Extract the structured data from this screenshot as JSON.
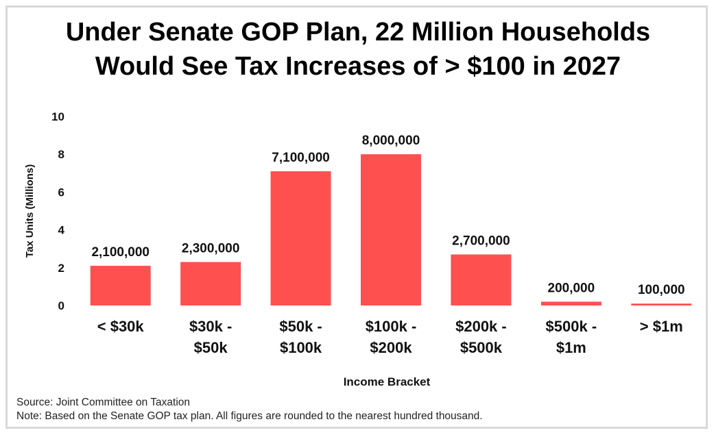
{
  "chart_data": {
    "type": "bar",
    "title": [
      "Under Senate GOP Plan, 22 Million Households",
      "Would See Tax Increases of > $100 in 2027"
    ],
    "xlabel": "Income Bracket",
    "ylabel": "Tax Units (Millions)",
    "ylim": [
      0,
      10
    ],
    "yticks": [
      "0",
      "2",
      "4",
      "6",
      "8",
      "10"
    ],
    "grid": false,
    "categories": [
      [
        "< $30k"
      ],
      [
        "$30k -",
        "$50k"
      ],
      [
        "$50k -",
        "$100k"
      ],
      [
        "$100k -",
        "$200k"
      ],
      [
        "$200k -",
        "$500k"
      ],
      [
        "$500k -",
        "$1m"
      ],
      [
        "> $1m"
      ]
    ],
    "values": [
      2.1,
      2.3,
      7.1,
      8.0,
      2.7,
      0.2,
      0.1
    ],
    "data_labels": [
      "2,100,000",
      "2,300,000",
      "7,100,000",
      "8,000,000",
      "2,700,000",
      "200,000",
      "100,000"
    ],
    "bar_color": "#ff5050"
  },
  "notes": {
    "source": "Source: Joint Committee on Taxation",
    "note": "Note: Based on the Senate GOP tax plan. All figures are rounded to the nearest hundred thousand."
  }
}
